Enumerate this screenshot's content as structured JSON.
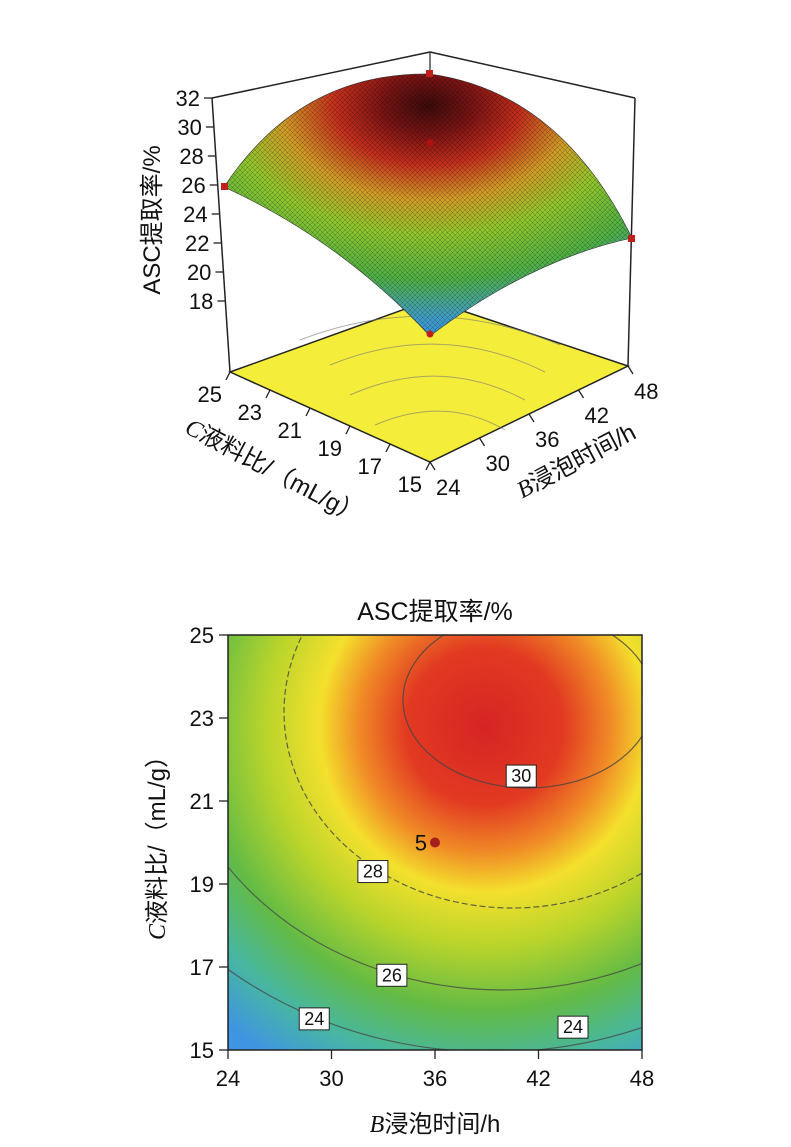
{
  "chart_data": [
    {
      "type": "surface",
      "z_label": "ASC提取率/%",
      "z_ticks": [
        "18",
        "20",
        "22",
        "24",
        "26",
        "28",
        "30",
        "32"
      ],
      "z_range": [
        16,
        32
      ],
      "x_label_italic": "B",
      "x_label_rest": "浸泡时间/h",
      "x_ticks": [
        "24",
        "30",
        "36",
        "42",
        "48"
      ],
      "x_range": [
        24,
        48
      ],
      "y_label_italic": "C",
      "y_label_rest": "液料比/（mL/g）",
      "y_ticks": [
        "15",
        "17",
        "19",
        "21",
        "23",
        "25"
      ],
      "y_range": [
        15,
        25
      ],
      "surface_points": [
        {
          "x": 24,
          "y": 15,
          "z": 18.6
        },
        {
          "x": 48,
          "y": 15,
          "z": 22.5
        },
        {
          "x": 24,
          "y": 25,
          "z": 26.0
        },
        {
          "x": 48,
          "y": 25,
          "z": 32.4
        },
        {
          "x": 36,
          "y": 20,
          "z": 29.2
        }
      ],
      "colors": [
        "#3d8fd8",
        "#58b848",
        "#9fcf2e",
        "#e2cc28",
        "#d13b20",
        "#5a0f0f"
      ],
      "floor_color": "#f4ee3a"
    },
    {
      "type": "contour",
      "title": "ASC提取率/%",
      "x_label_italic": "B",
      "x_label_rest": "浸泡时间/h",
      "x_ticks": [
        "24",
        "30",
        "36",
        "42",
        "48"
      ],
      "xlim": [
        24,
        48
      ],
      "y_label_italic": "C",
      "y_label_rest": "液料比/（mL/g）",
      "y_ticks": [
        "15",
        "17",
        "19",
        "21",
        "23",
        "25"
      ],
      "ylim": [
        15,
        25
      ],
      "contour_labels": [
        {
          "text": "30",
          "x": 41.0,
          "y": 21.6
        },
        {
          "text": "28",
          "x": 32.4,
          "y": 19.3
        },
        {
          "text": "26",
          "x": 33.5,
          "y": 16.8
        },
        {
          "text": "24",
          "x": 29.0,
          "y": 15.75
        },
        {
          "text": "24",
          "x": 44.0,
          "y": 15.55
        }
      ],
      "center_point": {
        "label": "5",
        "x": 36,
        "y": 20
      },
      "colors": [
        "#4fa6e0",
        "#5cb84a",
        "#c0d72a",
        "#f4e62c",
        "#f3a22a",
        "#d62424"
      ]
    }
  ]
}
